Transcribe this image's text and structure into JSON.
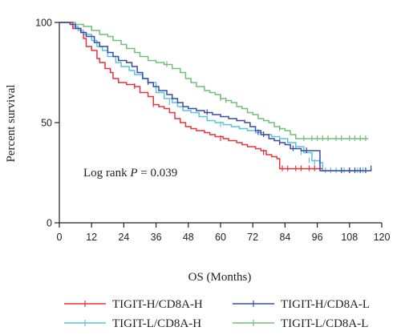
{
  "chart_data": {
    "type": "line",
    "subtype": "kaplan-meier",
    "title": "",
    "xlabel": "OS (Months)",
    "ylabel": "Percent survival",
    "xlim": [
      0,
      120
    ],
    "ylim": [
      0,
      100
    ],
    "x_ticks": [
      "0",
      "12",
      "24",
      "36",
      "48",
      "60",
      "72",
      "84",
      "96",
      "108",
      "120"
    ],
    "y_ticks": [
      "0",
      "50",
      "100"
    ],
    "grid": false,
    "legend_position": "bottom",
    "annotation": {
      "prefix": "Log rank ",
      "italic": "P",
      "suffix": " = 0.039"
    },
    "series": [
      {
        "name": "TIGIT-H/CD8A-H",
        "color": "#e8333a",
        "points": [
          [
            0,
            100
          ],
          [
            5,
            100
          ],
          [
            5,
            97
          ],
          [
            8,
            95
          ],
          [
            9,
            92
          ],
          [
            10,
            88
          ],
          [
            12,
            86
          ],
          [
            14,
            82
          ],
          [
            15,
            80
          ],
          [
            17,
            77
          ],
          [
            19,
            75
          ],
          [
            20,
            72
          ],
          [
            22,
            70
          ],
          [
            25,
            69
          ],
          [
            28,
            68
          ],
          [
            30,
            65
          ],
          [
            33,
            63
          ],
          [
            35,
            59
          ],
          [
            37,
            58
          ],
          [
            39,
            57
          ],
          [
            41,
            55
          ],
          [
            43,
            52
          ],
          [
            45,
            50
          ],
          [
            47,
            48
          ],
          [
            49,
            47
          ],
          [
            51,
            46
          ],
          [
            54,
            45
          ],
          [
            56,
            44
          ],
          [
            58,
            43
          ],
          [
            61,
            42
          ],
          [
            63,
            41
          ],
          [
            66,
            40
          ],
          [
            68,
            39
          ],
          [
            70,
            38
          ],
          [
            73,
            37
          ],
          [
            75,
            36
          ],
          [
            77,
            34
          ],
          [
            79,
            33
          ],
          [
            81,
            32
          ],
          [
            82,
            27
          ],
          [
            98,
            27
          ]
        ],
        "censors": [
          [
            28,
            68
          ],
          [
            35,
            59
          ],
          [
            60,
            42
          ],
          [
            76,
            35
          ],
          [
            83,
            27
          ],
          [
            85,
            27
          ],
          [
            88,
            27
          ],
          [
            90,
            27
          ],
          [
            93,
            27
          ],
          [
            95,
            27
          ]
        ]
      },
      {
        "name": "TIGIT-L/CD8A-H",
        "color": "#5bc4d6",
        "points": [
          [
            0,
            100
          ],
          [
            5,
            100
          ],
          [
            5,
            98
          ],
          [
            7,
            96
          ],
          [
            9,
            94
          ],
          [
            12,
            91
          ],
          [
            14,
            88
          ],
          [
            16,
            86
          ],
          [
            18,
            83
          ],
          [
            21,
            80
          ],
          [
            23,
            78
          ],
          [
            26,
            76
          ],
          [
            28,
            74
          ],
          [
            31,
            72
          ],
          [
            33,
            70
          ],
          [
            36,
            65
          ],
          [
            39,
            62
          ],
          [
            42,
            60
          ],
          [
            44,
            58
          ],
          [
            46,
            56
          ],
          [
            49,
            55
          ],
          [
            52,
            53
          ],
          [
            55,
            51
          ],
          [
            58,
            50
          ],
          [
            61,
            49
          ],
          [
            64,
            48
          ],
          [
            67,
            47
          ],
          [
            70,
            46
          ],
          [
            73,
            45
          ],
          [
            76,
            44
          ],
          [
            79,
            43
          ],
          [
            82,
            42
          ],
          [
            85,
            40
          ],
          [
            88,
            38
          ],
          [
            91,
            35
          ],
          [
            94,
            31
          ],
          [
            97,
            30
          ],
          [
            98,
            26
          ],
          [
            113,
            26
          ]
        ],
        "censors": [
          [
            41,
            60
          ],
          [
            60,
            49
          ],
          [
            88,
            38
          ],
          [
            90,
            35
          ],
          [
            93,
            31
          ],
          [
            95,
            30
          ],
          [
            99,
            26
          ],
          [
            101,
            26
          ],
          [
            103,
            26
          ],
          [
            106,
            26
          ],
          [
            108,
            26
          ],
          [
            111,
            26
          ],
          [
            113,
            26
          ]
        ]
      },
      {
        "name": "TIGIT-H/CD8A-L",
        "color": "#3a4aa8",
        "points": [
          [
            0,
            100
          ],
          [
            4,
            100
          ],
          [
            4,
            99
          ],
          [
            6,
            97
          ],
          [
            8,
            95
          ],
          [
            10,
            93
          ],
          [
            13,
            90
          ],
          [
            15,
            88
          ],
          [
            18,
            85
          ],
          [
            20,
            83
          ],
          [
            22,
            81
          ],
          [
            25,
            80
          ],
          [
            27,
            78
          ],
          [
            29,
            75
          ],
          [
            31,
            72
          ],
          [
            33,
            70
          ],
          [
            35,
            68
          ],
          [
            37,
            66
          ],
          [
            40,
            64
          ],
          [
            42,
            62
          ],
          [
            44,
            60
          ],
          [
            46,
            58
          ],
          [
            48,
            57
          ],
          [
            51,
            56
          ],
          [
            54,
            55
          ],
          [
            57,
            54
          ],
          [
            60,
            53
          ],
          [
            63,
            52
          ],
          [
            66,
            51
          ],
          [
            69,
            50
          ],
          [
            71,
            48
          ],
          [
            73,
            46
          ],
          [
            75,
            44
          ],
          [
            78,
            42
          ],
          [
            80,
            41
          ],
          [
            82,
            40
          ],
          [
            84,
            39
          ],
          [
            86,
            37
          ],
          [
            90,
            36
          ],
          [
            93,
            36
          ],
          [
            96,
            36
          ],
          [
            97,
            26
          ],
          [
            115,
            26
          ],
          [
            116,
            27
          ]
        ],
        "censors": [
          [
            33,
            70
          ],
          [
            55,
            55
          ],
          [
            74,
            45
          ],
          [
            76,
            44
          ],
          [
            82,
            40
          ],
          [
            87,
            37
          ],
          [
            92,
            36
          ],
          [
            105,
            26
          ],
          [
            108,
            26
          ],
          [
            110,
            26
          ],
          [
            112,
            26
          ],
          [
            114,
            26
          ],
          [
            116,
            27
          ]
        ]
      },
      {
        "name": "TIGIT-L/CD8A-L",
        "color": "#73be78",
        "points": [
          [
            0,
            100
          ],
          [
            6,
            100
          ],
          [
            6,
            99
          ],
          [
            9,
            98
          ],
          [
            12,
            96
          ],
          [
            15,
            94
          ],
          [
            18,
            93
          ],
          [
            20,
            91
          ],
          [
            23,
            89
          ],
          [
            25,
            87
          ],
          [
            28,
            85
          ],
          [
            30,
            83
          ],
          [
            33,
            81
          ],
          [
            36,
            80
          ],
          [
            39,
            79
          ],
          [
            42,
            77
          ],
          [
            45,
            75
          ],
          [
            47,
            72
          ],
          [
            49,
            70
          ],
          [
            51,
            68
          ],
          [
            54,
            66
          ],
          [
            56,
            65
          ],
          [
            58,
            64
          ],
          [
            60,
            62
          ],
          [
            62,
            61
          ],
          [
            64,
            60
          ],
          [
            66,
            58
          ],
          [
            68,
            57
          ],
          [
            70,
            55
          ],
          [
            72,
            54
          ],
          [
            74,
            52
          ],
          [
            76,
            51
          ],
          [
            78,
            50
          ],
          [
            80,
            48
          ],
          [
            82,
            47
          ],
          [
            84,
            46
          ],
          [
            86,
            44
          ],
          [
            88,
            42
          ],
          [
            89,
            42
          ],
          [
            90,
            42
          ],
          [
            100,
            42
          ],
          [
            110,
            42
          ],
          [
            115,
            42
          ]
        ],
        "censors": [
          [
            40,
            79
          ],
          [
            60,
            62
          ],
          [
            62,
            61
          ],
          [
            82,
            47
          ],
          [
            91,
            42
          ],
          [
            94,
            42
          ],
          [
            96,
            42
          ],
          [
            98,
            42
          ],
          [
            100,
            42
          ],
          [
            103,
            42
          ],
          [
            105,
            42
          ],
          [
            108,
            42
          ],
          [
            110,
            42
          ],
          [
            112,
            42
          ],
          [
            114,
            42
          ]
        ]
      }
    ],
    "legend_order": [
      "TIGIT-H/CD8A-H",
      "TIGIT-H/CD8A-L",
      "TIGIT-L/CD8A-H",
      "TIGIT-L/CD8A-L"
    ]
  }
}
